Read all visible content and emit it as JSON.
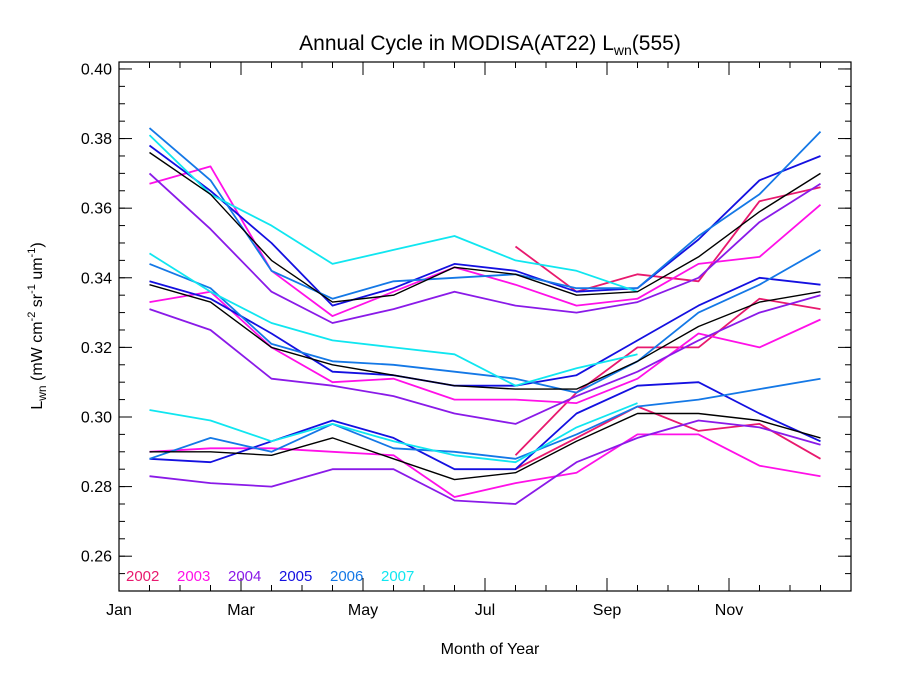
{
  "chart_data": {
    "type": "line",
    "title": {
      "main": "Annual Cycle in MODISA(AT22) L",
      "sub": "wn",
      "suffix": "(555)"
    },
    "xlabel": "Month of Year",
    "ylabel": {
      "pre": "L",
      "sub": "wn",
      "units": " (mW cm",
      "sup1": "-2",
      "mid1": " sr",
      "sup2": "-1",
      "mid2": " um",
      "sup3": "-1",
      "post": ")"
    },
    "xlim": [
      0,
      12
    ],
    "ylim": [
      0.25,
      0.402
    ],
    "x_ticks": [
      {
        "x": 0,
        "label": "Jan"
      },
      {
        "x": 2,
        "label": "Mar"
      },
      {
        "x": 4,
        "label": "May"
      },
      {
        "x": 6,
        "label": "Jul"
      },
      {
        "x": 8,
        "label": "Sep"
      },
      {
        "x": 10,
        "label": "Nov"
      }
    ],
    "y_ticks": [
      {
        "y": 0.26,
        "label": "0.26"
      },
      {
        "y": 0.28,
        "label": "0.28"
      },
      {
        "y": 0.3,
        "label": "0.30"
      },
      {
        "y": 0.32,
        "label": "0.32"
      },
      {
        "y": 0.34,
        "label": "0.34"
      },
      {
        "y": 0.36,
        "label": "0.36"
      },
      {
        "y": 0.38,
        "label": "0.38"
      },
      {
        "y": 0.4,
        "label": "0.40"
      }
    ],
    "x_minor_step": 0.5,
    "y_minor_step": 0.005,
    "legend": [
      {
        "label": "2002",
        "color": "#e8196e"
      },
      {
        "label": "2003",
        "color": "#ff10e8"
      },
      {
        "label": "2004",
        "color": "#8a1ae8"
      },
      {
        "label": "2005",
        "color": "#1410e0"
      },
      {
        "label": "2006",
        "color": "#1478e6"
      },
      {
        "label": "2007",
        "color": "#10e6f0"
      }
    ],
    "legend_position": "bottom-left",
    "series": [
      {
        "year": "2002",
        "band": "upper",
        "color": "#e8196e",
        "x": [
          6.5,
          7.5,
          8.5,
          9.5,
          10.5,
          11.5
        ],
        "y": [
          0.349,
          0.336,
          0.341,
          0.339,
          0.362,
          0.366
        ]
      },
      {
        "year": "2002",
        "band": "middle",
        "color": "#e8196e",
        "x": [
          6.5,
          7.5,
          8.5,
          9.5,
          10.5,
          11.5
        ],
        "y": [
          0.289,
          0.307,
          0.32,
          0.32,
          0.334,
          0.331
        ]
      },
      {
        "year": "2002",
        "band": "lower",
        "color": "#e8196e",
        "x": [
          6.5,
          7.5,
          8.5,
          9.5,
          10.5,
          11.5
        ],
        "y": [
          0.285,
          0.294,
          0.303,
          0.296,
          0.298,
          0.288
        ]
      },
      {
        "year": "2003",
        "band": "upper",
        "color": "#ff10e8",
        "x": [
          0.5,
          1.5,
          2.5,
          3.5,
          4.5,
          5.5,
          6.5,
          7.5,
          8.5,
          9.5,
          10.5,
          11.5
        ],
        "y": [
          0.367,
          0.372,
          0.342,
          0.329,
          0.336,
          0.343,
          0.338,
          0.332,
          0.334,
          0.344,
          0.346,
          0.361
        ]
      },
      {
        "year": "2003",
        "band": "middle",
        "color": "#ff10e8",
        "x": [
          0.5,
          1.5,
          2.5,
          3.5,
          4.5,
          5.5,
          6.5,
          7.5,
          8.5,
          9.5,
          10.5,
          11.5
        ],
        "y": [
          0.333,
          0.336,
          0.32,
          0.31,
          0.311,
          0.305,
          0.305,
          0.304,
          0.311,
          0.324,
          0.32,
          0.328
        ]
      },
      {
        "year": "2003",
        "band": "lower",
        "color": "#ff10e8",
        "x": [
          0.5,
          1.5,
          2.5,
          3.5,
          4.5,
          5.5,
          6.5,
          7.5,
          8.5,
          9.5,
          10.5,
          11.5
        ],
        "y": [
          0.29,
          0.291,
          0.291,
          0.29,
          0.289,
          0.277,
          0.281,
          0.284,
          0.295,
          0.295,
          0.286,
          0.283
        ]
      },
      {
        "year": "2004",
        "band": "upper",
        "color": "#8a1ae8",
        "x": [
          0.5,
          1.5,
          2.5,
          3.5,
          4.5,
          5.5,
          6.5,
          7.5,
          8.5,
          9.5,
          10.5,
          11.5
        ],
        "y": [
          0.37,
          0.354,
          0.336,
          0.327,
          0.331,
          0.336,
          0.332,
          0.33,
          0.333,
          0.34,
          0.356,
          0.367
        ]
      },
      {
        "year": "2004",
        "band": "middle",
        "color": "#8a1ae8",
        "x": [
          0.5,
          1.5,
          2.5,
          3.5,
          4.5,
          5.5,
          6.5,
          7.5,
          8.5,
          9.5,
          10.5,
          11.5
        ],
        "y": [
          0.331,
          0.325,
          0.311,
          0.309,
          0.306,
          0.301,
          0.298,
          0.306,
          0.313,
          0.322,
          0.33,
          0.335
        ]
      },
      {
        "year": "2004",
        "band": "lower",
        "color": "#8a1ae8",
        "x": [
          0.5,
          1.5,
          2.5,
          3.5,
          4.5,
          5.5,
          6.5,
          7.5,
          8.5,
          9.5,
          10.5,
          11.5
        ],
        "y": [
          0.283,
          0.281,
          0.28,
          0.285,
          0.285,
          0.276,
          0.275,
          0.287,
          0.294,
          0.299,
          0.297,
          0.292
        ]
      },
      {
        "year": "2005",
        "band": "upper",
        "color": "#1410e0",
        "x": [
          0.5,
          1.5,
          2.5,
          3.5,
          4.5,
          5.5,
          6.5,
          7.5,
          8.5,
          9.5,
          10.5,
          11.5
        ],
        "y": [
          0.378,
          0.365,
          0.35,
          0.332,
          0.337,
          0.344,
          0.342,
          0.336,
          0.337,
          0.351,
          0.368,
          0.375
        ]
      },
      {
        "year": "2005",
        "band": "middle",
        "color": "#1410e0",
        "x": [
          0.5,
          1.5,
          2.5,
          3.5,
          4.5,
          5.5,
          6.5,
          7.5,
          8.5,
          9.5,
          10.5,
          11.5
        ],
        "y": [
          0.339,
          0.334,
          0.324,
          0.313,
          0.312,
          0.309,
          0.309,
          0.312,
          0.322,
          0.332,
          0.34,
          0.338
        ]
      },
      {
        "year": "2005",
        "band": "lower",
        "color": "#1410e0",
        "x": [
          0.5,
          1.5,
          2.5,
          3.5,
          4.5,
          5.5,
          6.5,
          7.5,
          8.5,
          9.5,
          10.5,
          11.5
        ],
        "y": [
          0.288,
          0.287,
          0.293,
          0.299,
          0.294,
          0.285,
          0.285,
          0.301,
          0.309,
          0.31,
          0.301,
          0.293
        ]
      },
      {
        "year": "2006",
        "band": "upper",
        "color": "#1478e6",
        "x": [
          0.5,
          1.5,
          2.5,
          3.5,
          4.5,
          5.5,
          6.5,
          7.5,
          8.5,
          9.5,
          10.5,
          11.5
        ],
        "y": [
          0.383,
          0.368,
          0.342,
          0.334,
          0.339,
          0.34,
          0.341,
          0.337,
          0.337,
          0.352,
          0.364,
          0.382
        ]
      },
      {
        "year": "2006",
        "band": "middle",
        "color": "#1478e6",
        "x": [
          0.5,
          1.5,
          2.5,
          3.5,
          4.5,
          5.5,
          6.5,
          7.5,
          8.5,
          9.5,
          10.5,
          11.5
        ],
        "y": [
          0.344,
          0.337,
          0.321,
          0.316,
          0.315,
          0.313,
          0.311,
          0.307,
          0.316,
          0.33,
          0.338,
          0.348
        ]
      },
      {
        "year": "2006",
        "band": "lower",
        "color": "#1478e6",
        "x": [
          0.5,
          1.5,
          2.5,
          3.5,
          4.5,
          5.5,
          6.5,
          7.5,
          8.5,
          9.5,
          10.5,
          11.5
        ],
        "y": [
          0.288,
          0.294,
          0.29,
          0.298,
          0.291,
          0.29,
          0.288,
          0.295,
          0.303,
          0.305,
          0.308,
          0.311
        ]
      },
      {
        "year": "2007",
        "band": "upper",
        "color": "#10e6f0",
        "x": [
          0.5,
          1.5,
          2.5,
          3.5,
          4.5,
          5.5,
          6.5,
          7.5,
          8.5
        ],
        "y": [
          0.381,
          0.364,
          0.355,
          0.344,
          0.348,
          0.352,
          0.345,
          0.342,
          0.336
        ]
      },
      {
        "year": "2007",
        "band": "middle",
        "color": "#10e6f0",
        "x": [
          0.5,
          1.5,
          2.5,
          3.5,
          4.5,
          5.5,
          6.5,
          7.5,
          8.5
        ],
        "y": [
          0.347,
          0.336,
          0.327,
          0.322,
          0.32,
          0.318,
          0.309,
          0.314,
          0.318
        ]
      },
      {
        "year": "2007",
        "band": "lower",
        "color": "#10e6f0",
        "x": [
          0.5,
          1.5,
          2.5,
          3.5,
          4.5,
          5.5,
          6.5,
          7.5,
          8.5
        ],
        "y": [
          0.302,
          0.299,
          0.293,
          0.298,
          0.293,
          0.289,
          0.287,
          0.297,
          0.304
        ]
      },
      {
        "year": "mean",
        "band": "upper",
        "color": "#000000",
        "x": [
          0.5,
          1.5,
          2.5,
          3.5,
          4.5,
          5.5,
          6.5,
          7.5,
          8.5,
          9.5,
          10.5,
          11.5
        ],
        "y": [
          0.376,
          0.364,
          0.345,
          0.333,
          0.335,
          0.343,
          0.341,
          0.335,
          0.336,
          0.346,
          0.359,
          0.37
        ]
      },
      {
        "year": "mean",
        "band": "middle",
        "color": "#000000",
        "x": [
          0.5,
          1.5,
          2.5,
          3.5,
          4.5,
          5.5,
          6.5,
          7.5,
          8.5,
          9.5,
          10.5,
          11.5
        ],
        "y": [
          0.338,
          0.333,
          0.32,
          0.315,
          0.312,
          0.309,
          0.308,
          0.308,
          0.316,
          0.326,
          0.333,
          0.336
        ]
      },
      {
        "year": "mean",
        "band": "lower",
        "color": "#000000",
        "x": [
          0.5,
          1.5,
          2.5,
          3.5,
          4.5,
          5.5,
          6.5,
          7.5,
          8.5,
          9.5,
          10.5,
          11.5
        ],
        "y": [
          0.29,
          0.29,
          0.289,
          0.294,
          0.288,
          0.282,
          0.284,
          0.293,
          0.301,
          0.301,
          0.299,
          0.294
        ]
      }
    ]
  }
}
